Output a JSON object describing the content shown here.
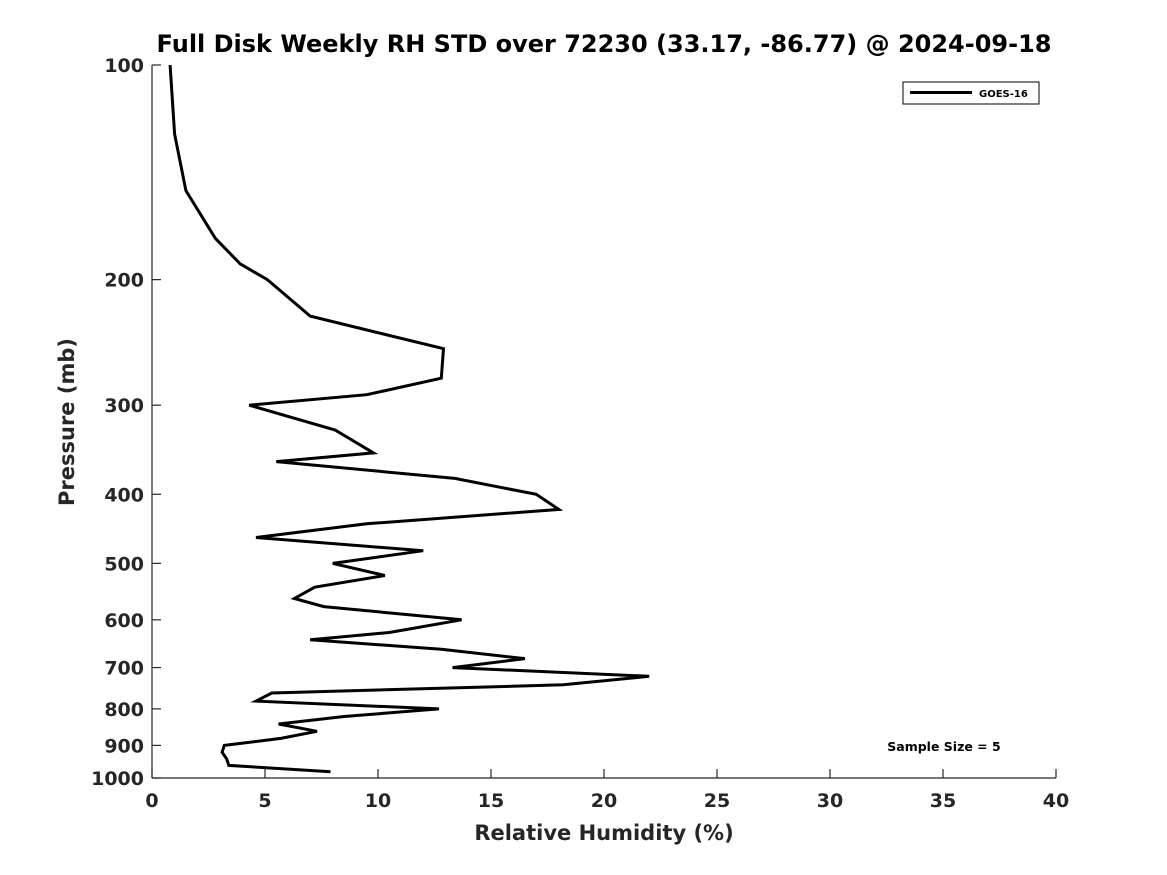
{
  "chart_data": {
    "type": "line",
    "title": "Full Disk Weekly RH STD over 72230 (33.17, -86.77) @ 2024-09-18",
    "xlabel": "Relative Humidity (%)",
    "ylabel": "Pressure (mb)",
    "xlim": [
      0,
      40
    ],
    "ylim": [
      100,
      1000
    ],
    "y_scale": "log",
    "y_reversed": true,
    "x_ticks": [
      "0",
      "5",
      "10",
      "15",
      "20",
      "25",
      "30",
      "35",
      "40"
    ],
    "y_ticks": [
      "100",
      "200",
      "300",
      "400",
      "500",
      "600",
      "700",
      "800",
      "900",
      "1000"
    ],
    "grid": false,
    "legend_position": "top-right",
    "series": [
      {
        "name": "GOES-16",
        "color": "#000000",
        "x": [
          0.8,
          1.0,
          1.5,
          2.8,
          3.9,
          5.1,
          7.0,
          12.9,
          12.8,
          9.5,
          4.3,
          8.1,
          9.8,
          5.5,
          13.4,
          17.0,
          18.0,
          9.5,
          4.6,
          12.0,
          8.0,
          10.3,
          7.2,
          6.3,
          7.6,
          13.7,
          10.5,
          7.0,
          12.8,
          16.5,
          13.3,
          22.0,
          18.2,
          5.3,
          4.6,
          12.7,
          8.5,
          5.6,
          7.3,
          5.7,
          3.2,
          3.1,
          3.3,
          3.4,
          7.9
        ],
        "y": [
          100,
          125,
          150,
          175,
          190,
          200,
          225,
          250,
          275,
          290,
          300,
          325,
          350,
          360,
          380,
          400,
          420,
          440,
          460,
          480,
          500,
          520,
          540,
          560,
          575,
          600,
          625,
          640,
          660,
          680,
          700,
          720,
          740,
          760,
          780,
          800,
          820,
          840,
          860,
          880,
          900,
          920,
          940,
          960,
          980
        ]
      }
    ],
    "annotations": [
      "Sample Size = 5"
    ]
  }
}
